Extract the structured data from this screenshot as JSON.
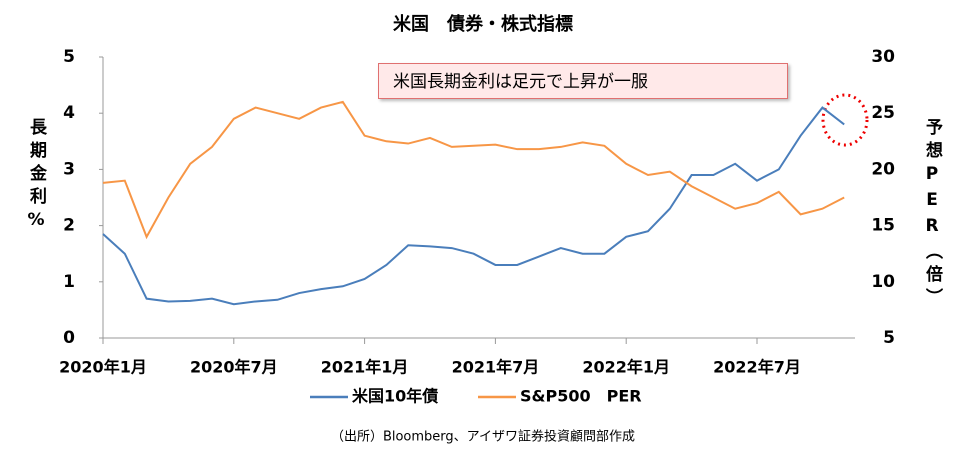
{
  "chart_data": {
    "type": "line",
    "title": "米国　債券・株式指標",
    "y_label": "長期金利%",
    "y2_label": "予想PER（倍）",
    "annotation": "米国長期金利は足元で上昇が一服",
    "source": "（出所）Bloomberg、アイザワ証券投資顧問部作成",
    "x": [
      "2020-01",
      "2020-02",
      "2020-03",
      "2020-04",
      "2020-05",
      "2020-06",
      "2020-07",
      "2020-08",
      "2020-09",
      "2020-10",
      "2020-11",
      "2020-12",
      "2021-01",
      "2021-02",
      "2021-03",
      "2021-04",
      "2021-05",
      "2021-06",
      "2021-07",
      "2021-08",
      "2021-09",
      "2021-10",
      "2021-11",
      "2021-12",
      "2022-01",
      "2022-02",
      "2022-03",
      "2022-04",
      "2022-05",
      "2022-06",
      "2022-07",
      "2022-08",
      "2022-09",
      "2022-10",
      "2022-11"
    ],
    "xticks": [
      {
        "value": "2020-01",
        "label": "2020年1月"
      },
      {
        "value": "2020-07",
        "label": "2020年7月"
      },
      {
        "value": "2021-01",
        "label": "2021年1月"
      },
      {
        "value": "2021-07",
        "label": "2021年7月"
      },
      {
        "value": "2022-01",
        "label": "2022年1月"
      },
      {
        "value": "2022-07",
        "label": "2022年7月"
      }
    ],
    "series": [
      {
        "name": "米国10年債",
        "color": "#4a7ebb",
        "values": [
          1.85,
          1.5,
          0.7,
          0.65,
          0.66,
          0.7,
          0.6,
          0.65,
          0.68,
          0.8,
          0.87,
          0.92,
          1.05,
          1.3,
          1.65,
          1.63,
          1.6,
          1.5,
          1.3,
          1.3,
          1.45,
          1.6,
          1.5,
          1.5,
          1.8,
          1.9,
          2.3,
          2.9,
          2.9,
          3.1,
          2.8,
          3.0,
          3.6,
          4.1,
          3.8
        ]
      },
      {
        "name": "S&P500　PER",
        "color": "#f79646",
        "axis": "y2",
        "values": [
          18.8,
          19,
          14,
          17.5,
          20.5,
          22,
          24.5,
          25.5,
          25,
          24.5,
          25.5,
          26,
          23,
          22.5,
          22.3,
          22.8,
          22,
          22.1,
          22.2,
          21.8,
          21.8,
          22,
          22.4,
          22.1,
          20.5,
          19.5,
          19.8,
          18.5,
          17.5,
          16.5,
          17,
          18,
          16,
          16.5,
          17.5
        ]
      }
    ],
    "ylim": [
      0,
      5
    ],
    "yticks": [
      0,
      1,
      2,
      3,
      4,
      5
    ],
    "y2lim": [
      5,
      30
    ],
    "y2ticks": [
      5,
      10,
      15,
      20,
      25,
      30
    ]
  }
}
